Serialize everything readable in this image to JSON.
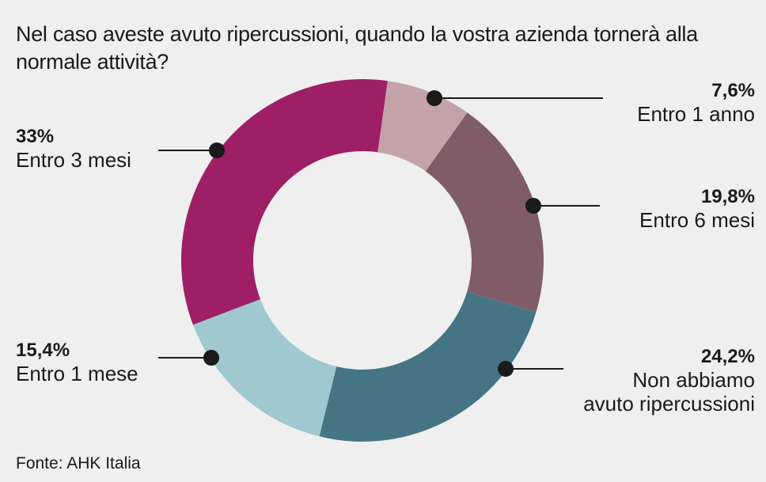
{
  "title": "Nel caso aveste avuto ripercussioni, quando la vostra azienda tornerà alla normale attività?",
  "source": "Fonte: AHK Italia",
  "chart_data": {
    "type": "pie",
    "donut": true,
    "title": "Nel caso aveste avuto ripercussioni, quando la vostra azienda tornerà alla normale attività?",
    "slices": [
      {
        "label": "Entro 1 anno",
        "value": 7.6,
        "display": "7,6%",
        "color": "#c4a2aa"
      },
      {
        "label": "Entro 6 mesi",
        "value": 19.8,
        "display": "19,8%",
        "color": "#805c68"
      },
      {
        "label": "Non abbiamo avuto ripercussioni",
        "value": 24.2,
        "display": "24,2%",
        "color": "#457585"
      },
      {
        "label": "Entro 1 mese",
        "value": 15.4,
        "display": "15,4%",
        "color": "#9fc8cf"
      },
      {
        "label": "Entro 3 mesi",
        "value": 33,
        "display": "33%",
        "color": "#9e1f65"
      }
    ]
  },
  "labels": {
    "entro_1_anno": {
      "pct": "7,6%",
      "txt": "Entro 1 anno"
    },
    "entro_6_mesi": {
      "pct": "19,8%",
      "txt": "Entro 6 mesi"
    },
    "non_abbiamo": {
      "pct": "24,2%",
      "txt1": "Non abbiamo",
      "txt2": "avuto ripercussioni"
    },
    "entro_1_mese": {
      "pct": "15,4%",
      "txt": "Entro 1 mese"
    },
    "entro_3_mesi": {
      "pct": "33%",
      "txt": "Entro 3 mesi"
    }
  }
}
